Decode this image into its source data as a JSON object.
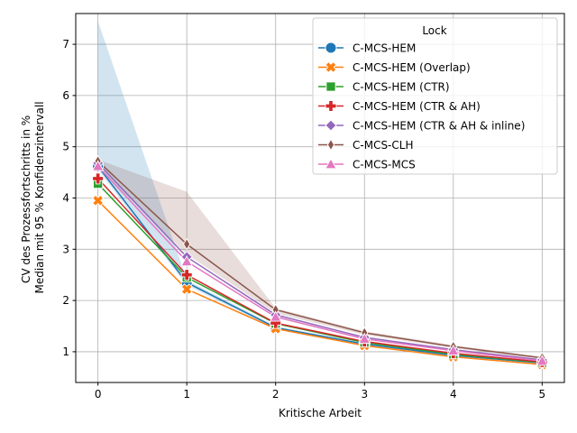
{
  "chart_data": {
    "type": "line",
    "xlabel": "Kritische Arbeit",
    "ylabel_lines": [
      "CV des Prozessfortschritts in %",
      "Median mit 95 % Konfidenzintervall"
    ],
    "x": [
      0,
      1,
      2,
      3,
      4,
      5
    ],
    "xlim": [
      -0.25,
      5.25
    ],
    "ylim": [
      0.4,
      7.6
    ],
    "xticks": [
      "0",
      "1",
      "2",
      "3",
      "4",
      "5"
    ],
    "yticks": [
      "1",
      "2",
      "3",
      "4",
      "5",
      "6",
      "7"
    ],
    "grid": true,
    "legend_title": "Lock",
    "legend_position": "top-right",
    "series": [
      {
        "name": "C-MCS-HEM",
        "color": "#1f77b4",
        "marker": "circle",
        "values": [
          4.62,
          2.35,
          1.47,
          1.15,
          0.93,
          0.78
        ],
        "ci_low": [
          4.55,
          2.3,
          1.44,
          1.13,
          0.91,
          0.77
        ],
        "ci_high": [
          7.45,
          2.4,
          1.5,
          1.17,
          0.95,
          0.79
        ]
      },
      {
        "name": "C-MCS-HEM (Overlap)",
        "color": "#ff7f0e",
        "marker": "x-filled",
        "values": [
          3.95,
          2.22,
          1.45,
          1.12,
          0.9,
          0.75
        ]
      },
      {
        "name": "C-MCS-HEM (CTR)",
        "color": "#2ca02c",
        "marker": "square",
        "values": [
          4.28,
          2.45,
          1.55,
          1.18,
          0.95,
          0.79
        ]
      },
      {
        "name": "C-MCS-HEM (CTR & AH)",
        "color": "#d62728",
        "marker": "plus",
        "values": [
          4.38,
          2.5,
          1.56,
          1.2,
          0.97,
          0.8
        ]
      },
      {
        "name": "C-MCS-HEM (CTR & AH & inline)",
        "color": "#9467bd",
        "marker": "diamond",
        "values": [
          4.68,
          2.85,
          1.72,
          1.28,
          1.04,
          0.84
        ]
      },
      {
        "name": "C-MCS-CLH",
        "color": "#8c564b",
        "marker": "thin-diamond",
        "values": [
          4.72,
          3.1,
          1.82,
          1.37,
          1.1,
          0.88
        ],
        "ci_low": [
          4.6,
          2.9,
          1.75,
          1.33,
          1.07,
          0.86
        ],
        "ci_high": [
          4.75,
          4.12,
          1.85,
          1.4,
          1.13,
          0.9
        ]
      },
      {
        "name": "C-MCS-MCS",
        "color": "#e377c2",
        "marker": "triangle",
        "values": [
          4.62,
          2.76,
          1.68,
          1.25,
          1.02,
          0.82
        ]
      }
    ]
  }
}
